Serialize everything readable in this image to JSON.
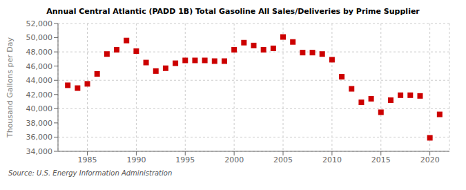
{
  "chart_data": {
    "type": "scatter",
    "title": "Annual Central Atlantic (PADD 1B) Total Gasoline All Sales/Deliveries by Prime Supplier",
    "ylabel": "Thousand Gallons per Day",
    "annotation": "Source: U.S. Energy Information Administration",
    "x": [
      1983,
      1984,
      1985,
      1986,
      1987,
      1988,
      1989,
      1990,
      1991,
      1992,
      1993,
      1994,
      1995,
      1996,
      1997,
      1998,
      1999,
      2000,
      2001,
      2002,
      2003,
      2004,
      2005,
      2006,
      2007,
      2008,
      2009,
      2010,
      2011,
      2012,
      2013,
      2014,
      2015,
      2016,
      2017,
      2018,
      2019,
      2020,
      2021
    ],
    "values": [
      43300,
      42900,
      43500,
      44900,
      47700,
      48300,
      49600,
      48100,
      46500,
      45300,
      45700,
      46400,
      46800,
      46800,
      46800,
      46700,
      46700,
      48300,
      49300,
      48900,
      48300,
      48500,
      50100,
      49400,
      47900,
      47900,
      47700,
      46900,
      44500,
      42800,
      40900,
      41400,
      39500,
      41200,
      41900,
      41900,
      41800,
      35900,
      39200
    ],
    "color": "#cc0000",
    "marker": "square",
    "grid": true,
    "xlim": [
      1982,
      2022
    ],
    "xticks": [
      1985,
      1990,
      1995,
      2000,
      2005,
      2010,
      2015,
      2020
    ],
    "ylim": [
      34000,
      52000
    ],
    "yticks": [
      {
        "value": 34000,
        "label": "34,000"
      },
      {
        "value": 36000,
        "label": "36,000"
      },
      {
        "value": 38000,
        "label": "38,000"
      },
      {
        "value": 40000,
        "label": "40,000"
      },
      {
        "value": 42000,
        "label": "42,000"
      },
      {
        "value": 44000,
        "label": "44,000"
      },
      {
        "value": 46000,
        "label": "46,000"
      },
      {
        "value": 48000,
        "label": "48,000"
      },
      {
        "value": 50000,
        "label": "50,000"
      },
      {
        "value": 52000,
        "label": "52,000"
      }
    ]
  }
}
